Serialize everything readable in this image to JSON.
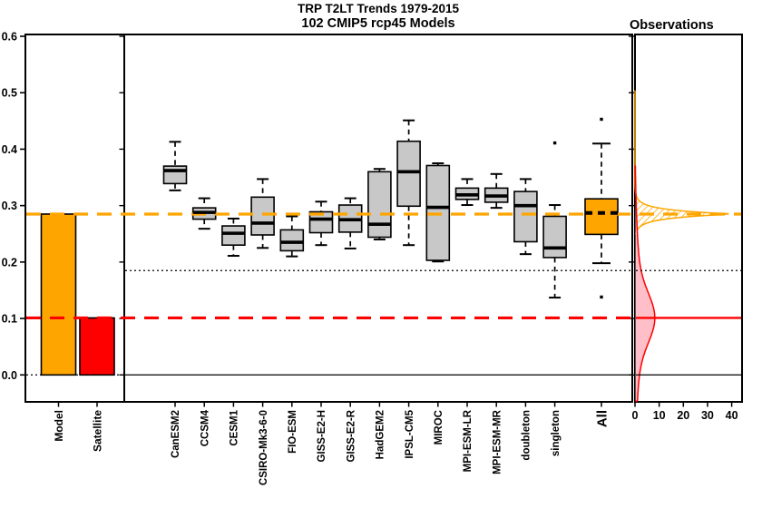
{
  "title": {
    "line1": "TRP T2LT Trends 1979-2015",
    "line2": "102 CMIP5 rcp45 Models"
  },
  "observations_title": "Observations",
  "chart_data": {
    "type": "composite",
    "description": "Left: bar chart of Model vs Satellite tropical T2LT trend; middle: boxplots per CMIP5 model; right: observed/model trend probability densities",
    "y_axis": {
      "tick_labels": [
        "0.0",
        "0.1",
        "0.2",
        "0.3",
        "0.4",
        "0.5",
        "0.6"
      ],
      "tick_values": [
        0.0,
        0.1,
        0.2,
        0.3,
        0.4,
        0.5,
        0.6
      ],
      "value_range": [
        -0.048,
        0.603
      ]
    },
    "left_panel": {
      "bars": [
        {
          "label": "Model",
          "value": 0.285,
          "color": "#FFA500"
        },
        {
          "label": "Satellite",
          "value": 0.101,
          "color": "#FF0000"
        }
      ]
    },
    "reference_lines": [
      {
        "name": "model-mean-line",
        "value": 0.285,
        "color": "#FFA500",
        "style": "dashed",
        "extent": "all"
      },
      {
        "name": "satellite-mean-line",
        "value": 0.101,
        "color": "#FF0000",
        "style": "dashed",
        "extent": "left-mid"
      },
      {
        "name": "satellite-mean-line-obs",
        "value": 0.101,
        "color": "#FF0000",
        "style": "solid",
        "extent": "obs"
      },
      {
        "name": "threshold-line",
        "value": 0.185,
        "color": "#000000",
        "style": "dotted",
        "extent": "mid-obs"
      },
      {
        "name": "zero-line-left",
        "value": 0.0,
        "color": "#000000",
        "style": "dotted",
        "extent": "left"
      },
      {
        "name": "zero-line",
        "value": 0.0,
        "color": "#000000",
        "style": "solid",
        "extent": "mid-obs"
      }
    ],
    "boxplots": {
      "box_color": "#C8C8C8",
      "models": [
        {
          "label": "CanESM2",
          "whisker_high": 0.413,
          "q3": 0.37,
          "median": 0.362,
          "q1": 0.339,
          "whisker_low": 0.327
        },
        {
          "label": "CCSM4",
          "whisker_high": 0.313,
          "q3": 0.296,
          "median": 0.288,
          "q1": 0.276,
          "whisker_low": 0.259
        },
        {
          "label": "CESM1",
          "whisker_high": 0.277,
          "q3": 0.264,
          "median": 0.251,
          "q1": 0.23,
          "whisker_low": 0.211
        },
        {
          "label": "CSIRO-Mk3-6-0",
          "whisker_high": 0.347,
          "q3": 0.315,
          "median": 0.269,
          "q1": 0.248,
          "whisker_low": 0.225
        },
        {
          "label": "FIO-ESM",
          "whisker_high": 0.281,
          "q3": 0.257,
          "median": 0.235,
          "q1": 0.22,
          "whisker_low": 0.21
        },
        {
          "label": "GISS-E2-H",
          "whisker_high": 0.307,
          "q3": 0.289,
          "median": 0.276,
          "q1": 0.252,
          "whisker_low": 0.23
        },
        {
          "label": "GISS-E2-R",
          "whisker_high": 0.313,
          "q3": 0.301,
          "median": 0.275,
          "q1": 0.253,
          "whisker_low": 0.224
        },
        {
          "label": "HadGEM2",
          "whisker_high": 0.365,
          "q3": 0.36,
          "median": 0.267,
          "q1": 0.244,
          "whisker_low": 0.24
        },
        {
          "label": "IPSL-CM5",
          "whisker_high": 0.451,
          "q3": 0.414,
          "median": 0.36,
          "q1": 0.299,
          "whisker_low": 0.23
        },
        {
          "label": "MIROC",
          "whisker_high": 0.375,
          "q3": 0.371,
          "median": 0.297,
          "q1": 0.203,
          "whisker_low": 0.201
        },
        {
          "label": "MPI-ESM-LR",
          "whisker_high": 0.347,
          "q3": 0.331,
          "median": 0.319,
          "q1": 0.311,
          "whisker_low": 0.301
        },
        {
          "label": "MPI-ESM-MR",
          "whisker_high": 0.356,
          "q3": 0.331,
          "median": 0.317,
          "q1": 0.306,
          "whisker_low": 0.296
        },
        {
          "label": "doubleton",
          "whisker_high": 0.347,
          "q3": 0.325,
          "median": 0.3,
          "q1": 0.236,
          "whisker_low": 0.214
        },
        {
          "label": "singleton",
          "whisker_high": 0.301,
          "q3": 0.281,
          "median": 0.225,
          "q1": 0.208,
          "whisker_low": 0.137,
          "outliers": [
            0.411
          ]
        }
      ],
      "all": {
        "label": "All",
        "whisker_high": 0.41,
        "q3": 0.312,
        "median": 0.287,
        "q1": 0.249,
        "whisker_low": 0.198,
        "outliers": [
          0.453,
          0.138
        ],
        "color": "#FFA500"
      }
    },
    "observations_panel": {
      "x_tick_labels": [
        "0",
        "10",
        "20",
        "30",
        "40"
      ],
      "x_tick_values": [
        0,
        10,
        20,
        30,
        40
      ],
      "x_max": 44.3,
      "densities": [
        {
          "name": "model-trend-density",
          "color": "#FFA500",
          "fill": "hatched",
          "center": 0.285,
          "peak": 41.5,
          "shape": "laplace",
          "width": 0.0075,
          "span": [
            0.503,
            0.249
          ]
        },
        {
          "name": "observed-trend-density",
          "color": "#FF0000",
          "fill": "#FFBFC8",
          "center": 0.101,
          "peak": 8.2,
          "shape": "gauss2",
          "sigmas": [
            0.042,
            0.115
          ],
          "weights": [
            0.72,
            0.28
          ],
          "span": [
            0.37,
            -0.047
          ]
        }
      ]
    }
  }
}
